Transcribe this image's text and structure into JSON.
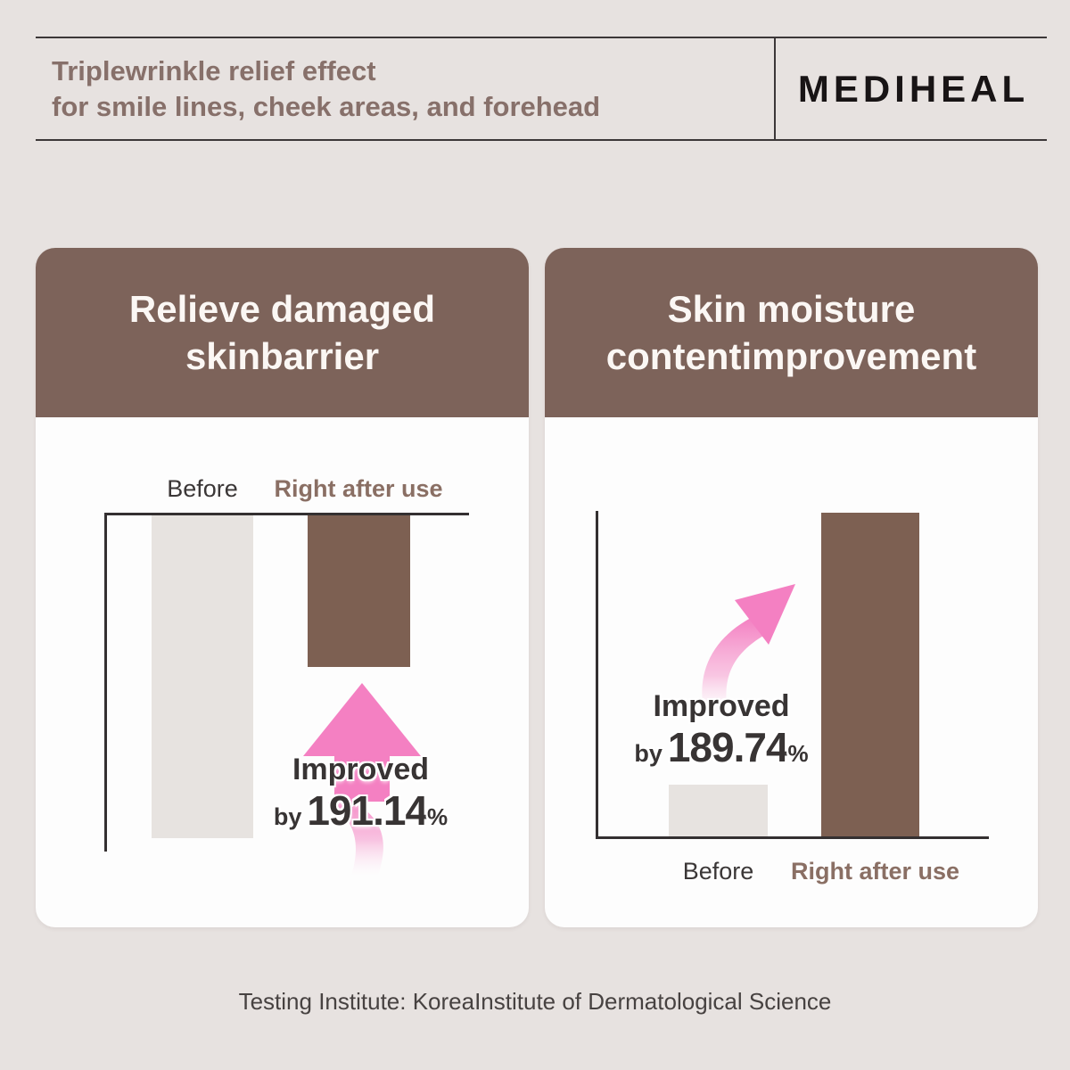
{
  "header": {
    "title_line1": "Triplewrinkle relief effect",
    "title_line2": "for smile lines, cheek areas, and forehead",
    "brand": "MEDIHEAL"
  },
  "cards": {
    "left": {
      "title_line1": "Relieve damaged",
      "title_line2": "skinbarrier",
      "label_before": "Before",
      "label_after": "Right after use",
      "improved_lead": "Improved",
      "improved_by": "by",
      "improved_value": "191.14",
      "improved_unit": "%"
    },
    "right": {
      "title_line1": "Skin moisture",
      "title_line2": "contentimprovement",
      "label_before": "Before",
      "label_after": "Right after use",
      "improved_lead": "Improved",
      "improved_by": "by",
      "improved_value": "189.74",
      "improved_unit": "%"
    }
  },
  "footer": {
    "text": "Testing Institute: KoreaInstitute of Dermatological Science"
  },
  "colors": {
    "background": "#e7e2e0",
    "card": "#fdfdfd",
    "brown_header": "#7d635a",
    "brown_bar": "#7d6052",
    "gray_bar": "#e7e3e0",
    "pink_arrow": "#f480c2",
    "title_text": "#87706a",
    "dark_text": "#383434",
    "rule_line": "#3c3738"
  },
  "chart_data": [
    {
      "type": "bar",
      "title": "Relieve damaged skinbarrier",
      "categories": [
        "Before",
        "Right after use"
      ],
      "relative_values": [
        96,
        45
      ],
      "orientation": "bars-hang-from-top-axis",
      "annotation": "Improved by 191.14%",
      "labels_position": "above-bars",
      "axis_values_shown": false
    },
    {
      "type": "bar",
      "title": "Skin moisture contentimprovement",
      "categories": [
        "Before",
        "Right after use"
      ],
      "relative_values": [
        16,
        100
      ],
      "orientation": "bars-rise-from-bottom-axis",
      "annotation": "Improved by 189.74%",
      "labels_position": "below-bars",
      "axis_values_shown": false
    }
  ]
}
